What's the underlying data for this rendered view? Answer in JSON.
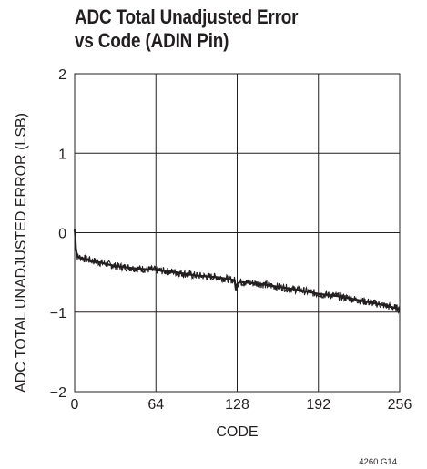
{
  "chart_data": {
    "type": "line",
    "title_lines": [
      "ADC Total Unadjusted Error",
      "vs Code (ADIN Pin)"
    ],
    "xlabel": "CODE",
    "ylabel": "ADC TOTAL UNADJUSTED ERROR (LSB)",
    "xlim": [
      0,
      256
    ],
    "ylim": [
      -2,
      2
    ],
    "xticks": [
      0,
      64,
      128,
      192,
      256
    ],
    "yticks": [
      -2,
      -1,
      0,
      1,
      2
    ],
    "ytick_labels": [
      "−2",
      "−1",
      "0",
      "1",
      "2"
    ],
    "grid": true,
    "series": [
      {
        "points": [
          [
            0,
            0.05
          ],
          [
            0.5,
            -0.05
          ],
          [
            1,
            -0.2
          ],
          [
            2,
            -0.3
          ],
          [
            8,
            -0.33
          ],
          [
            16,
            -0.36
          ],
          [
            32,
            -0.42
          ],
          [
            48,
            -0.45
          ],
          [
            64,
            -0.47
          ],
          [
            80,
            -0.5
          ],
          [
            96,
            -0.54
          ],
          [
            112,
            -0.56
          ],
          [
            120,
            -0.58
          ],
          [
            126,
            -0.6
          ],
          [
            127,
            -0.72
          ],
          [
            128,
            -0.65
          ],
          [
            130,
            -0.62
          ],
          [
            144,
            -0.64
          ],
          [
            160,
            -0.68
          ],
          [
            176,
            -0.72
          ],
          [
            192,
            -0.77
          ],
          [
            208,
            -0.8
          ],
          [
            224,
            -0.85
          ],
          [
            240,
            -0.9
          ],
          [
            256,
            -0.96
          ]
        ],
        "noise_band": 0.05
      }
    ],
    "figure_id": "4260 G14"
  }
}
